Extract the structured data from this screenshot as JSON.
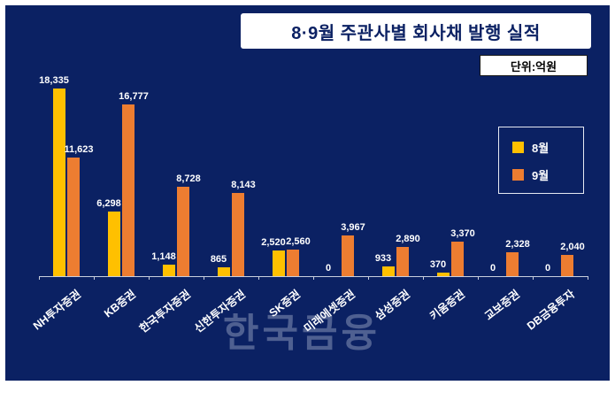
{
  "watermark": "한국금융",
  "colors": {
    "background": "#0b2163",
    "bar_august": "#ffc000",
    "bar_september": "#ed7d31",
    "value_label_text": "#ffffff",
    "title_text": "#0b2163"
  },
  "chart_data": {
    "type": "bar",
    "title": "8·9월 주관사별 회사채 발행 실적",
    "unit_label": "단위:억원",
    "categories": [
      "NH투자증권",
      "KB증권",
      "한국투자증권",
      "신한투자증권",
      "SK증권",
      "미래에셋증권",
      "삼성증권",
      "키움증권",
      "교보증권",
      "DB금융투자"
    ],
    "series": [
      {
        "name": "8월",
        "color": "#ffc000",
        "values": [
          18335,
          6298,
          1148,
          865,
          2520,
          0,
          933,
          370,
          0,
          0
        ]
      },
      {
        "name": "9월",
        "color": "#ed7d31",
        "values": [
          11623,
          16777,
          8728,
          8143,
          2560,
          3967,
          2890,
          3370,
          2328,
          2040
        ]
      }
    ],
    "value_labels": [
      "18,335",
      "11,623",
      "6,298",
      "16,777",
      "1,148",
      "8,728",
      "865",
      "8,143",
      "2,520",
      "2,560",
      "0",
      "3,967",
      "933",
      "2,890",
      "370",
      "3,370",
      "0",
      "2,328",
      "0",
      "2,040"
    ],
    "ylim": [
      0,
      18500
    ],
    "grid": false,
    "legend_position": "right"
  }
}
